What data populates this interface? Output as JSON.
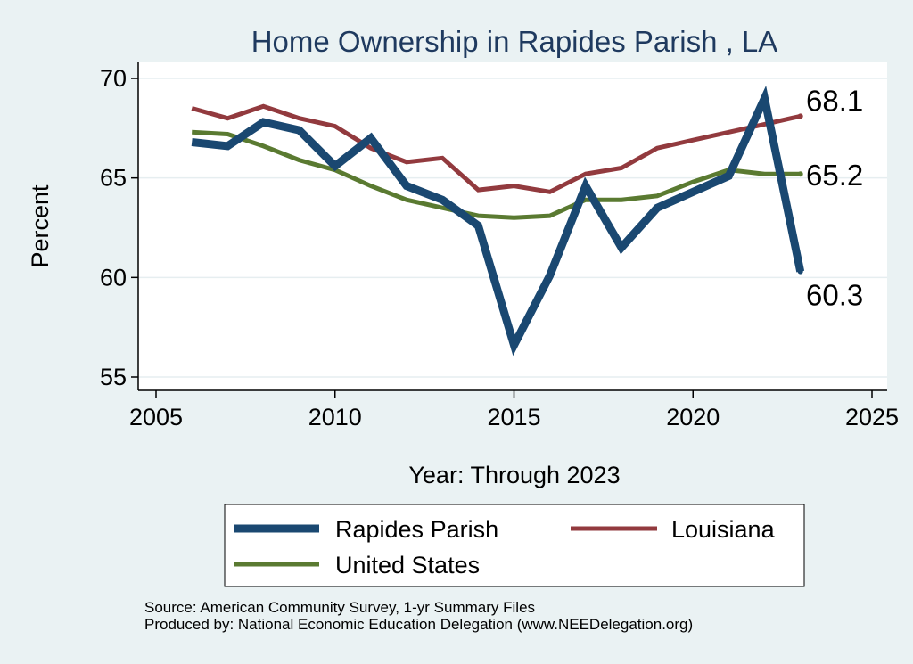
{
  "chart_data": {
    "type": "line",
    "title": "Home Ownership in Rapides Parish , LA",
    "xlabel": "Year: Through 2023",
    "ylabel": "Percent",
    "xlim": [
      2005,
      2025
    ],
    "ylim": [
      55,
      70
    ],
    "xticks": [
      2005,
      2010,
      2015,
      2020,
      2025
    ],
    "yticks": [
      55,
      60,
      65,
      70
    ],
    "grid": true,
    "legend_position": "bottom",
    "x": [
      2006,
      2007,
      2008,
      2009,
      2010,
      2011,
      2012,
      2013,
      2014,
      2015,
      2016,
      2017,
      2018,
      2019,
      2020,
      2021,
      2022,
      2023
    ],
    "series": [
      {
        "name": "Rapides Parish",
        "color": "#1a4871",
        "values": [
          66.8,
          66.6,
          67.8,
          67.4,
          65.6,
          67.0,
          64.6,
          63.9,
          62.6,
          56.6,
          60.1,
          64.6,
          61.5,
          63.5,
          64.3,
          65.1,
          69.0,
          60.3
        ],
        "end_label": "60.3"
      },
      {
        "name": "Louisiana",
        "color": "#923a3e",
        "values": [
          68.5,
          68.0,
          68.6,
          68.0,
          67.6,
          66.5,
          65.8,
          66.0,
          64.4,
          64.6,
          64.3,
          65.2,
          65.5,
          66.5,
          66.9,
          67.3,
          67.7,
          68.1
        ],
        "end_label": "68.1"
      },
      {
        "name": "United States",
        "color": "#5a7a31",
        "values": [
          67.3,
          67.2,
          66.6,
          65.9,
          65.4,
          64.6,
          63.9,
          63.5,
          63.1,
          63.0,
          63.1,
          63.9,
          63.9,
          64.1,
          64.8,
          65.4,
          65.2,
          65.2
        ],
        "end_label": "65.2"
      }
    ]
  },
  "notes": {
    "source": "Source: American Community Survey, 1-yr Summary Files",
    "produced": "Produced by: National Economic Education Delegation (www.NEEDelegation.org)"
  }
}
